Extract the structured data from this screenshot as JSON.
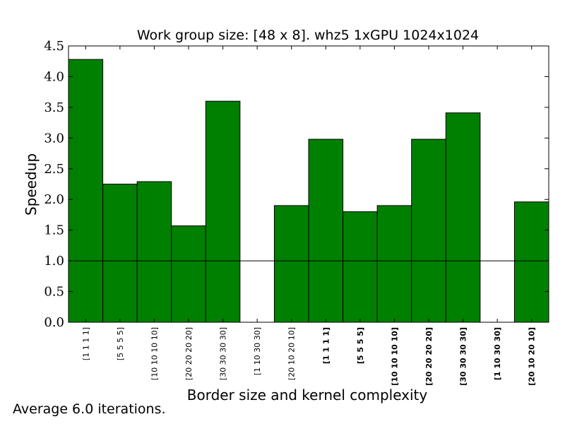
{
  "chart_data": {
    "type": "bar",
    "title": "Work group size: [48 x 8]. whz5 1xGPU 1024x1024",
    "xlabel": "Border size and kernel complexity",
    "ylabel": "Speedup",
    "ylim": [
      0.0,
      4.5
    ],
    "yticks": [
      "0.0",
      "0.5",
      "1.0",
      "1.5",
      "2.0",
      "2.5",
      "3.0",
      "3.5",
      "4.0",
      "4.5"
    ],
    "categories": [
      "[1 1 1 1]",
      "[5 5 5 5]",
      "[10 10 10 10]",
      "[20 20 20 20]",
      "[30 30 30 30]",
      "[1 10 30 30]",
      "[20 10 20 10]",
      "[1 1 1 1]",
      "[5 5 5 5]",
      "[10 10 10 10]",
      "[20 20 20 20]",
      "[30 30 30 30]",
      "[1 10 30 30]",
      "[20 10 20 10]"
    ],
    "bold_labels": [
      false,
      false,
      false,
      false,
      false,
      false,
      false,
      true,
      true,
      true,
      true,
      true,
      true,
      true
    ],
    "values": [
      4.28,
      2.25,
      2.29,
      1.57,
      3.6,
      0.0,
      1.9,
      2.98,
      1.8,
      1.9,
      2.98,
      3.41,
      0.0,
      1.96
    ],
    "reference_line": 1.0,
    "bar_color": "#008000",
    "grid": false
  },
  "footnote": "Average 6.0 iterations."
}
